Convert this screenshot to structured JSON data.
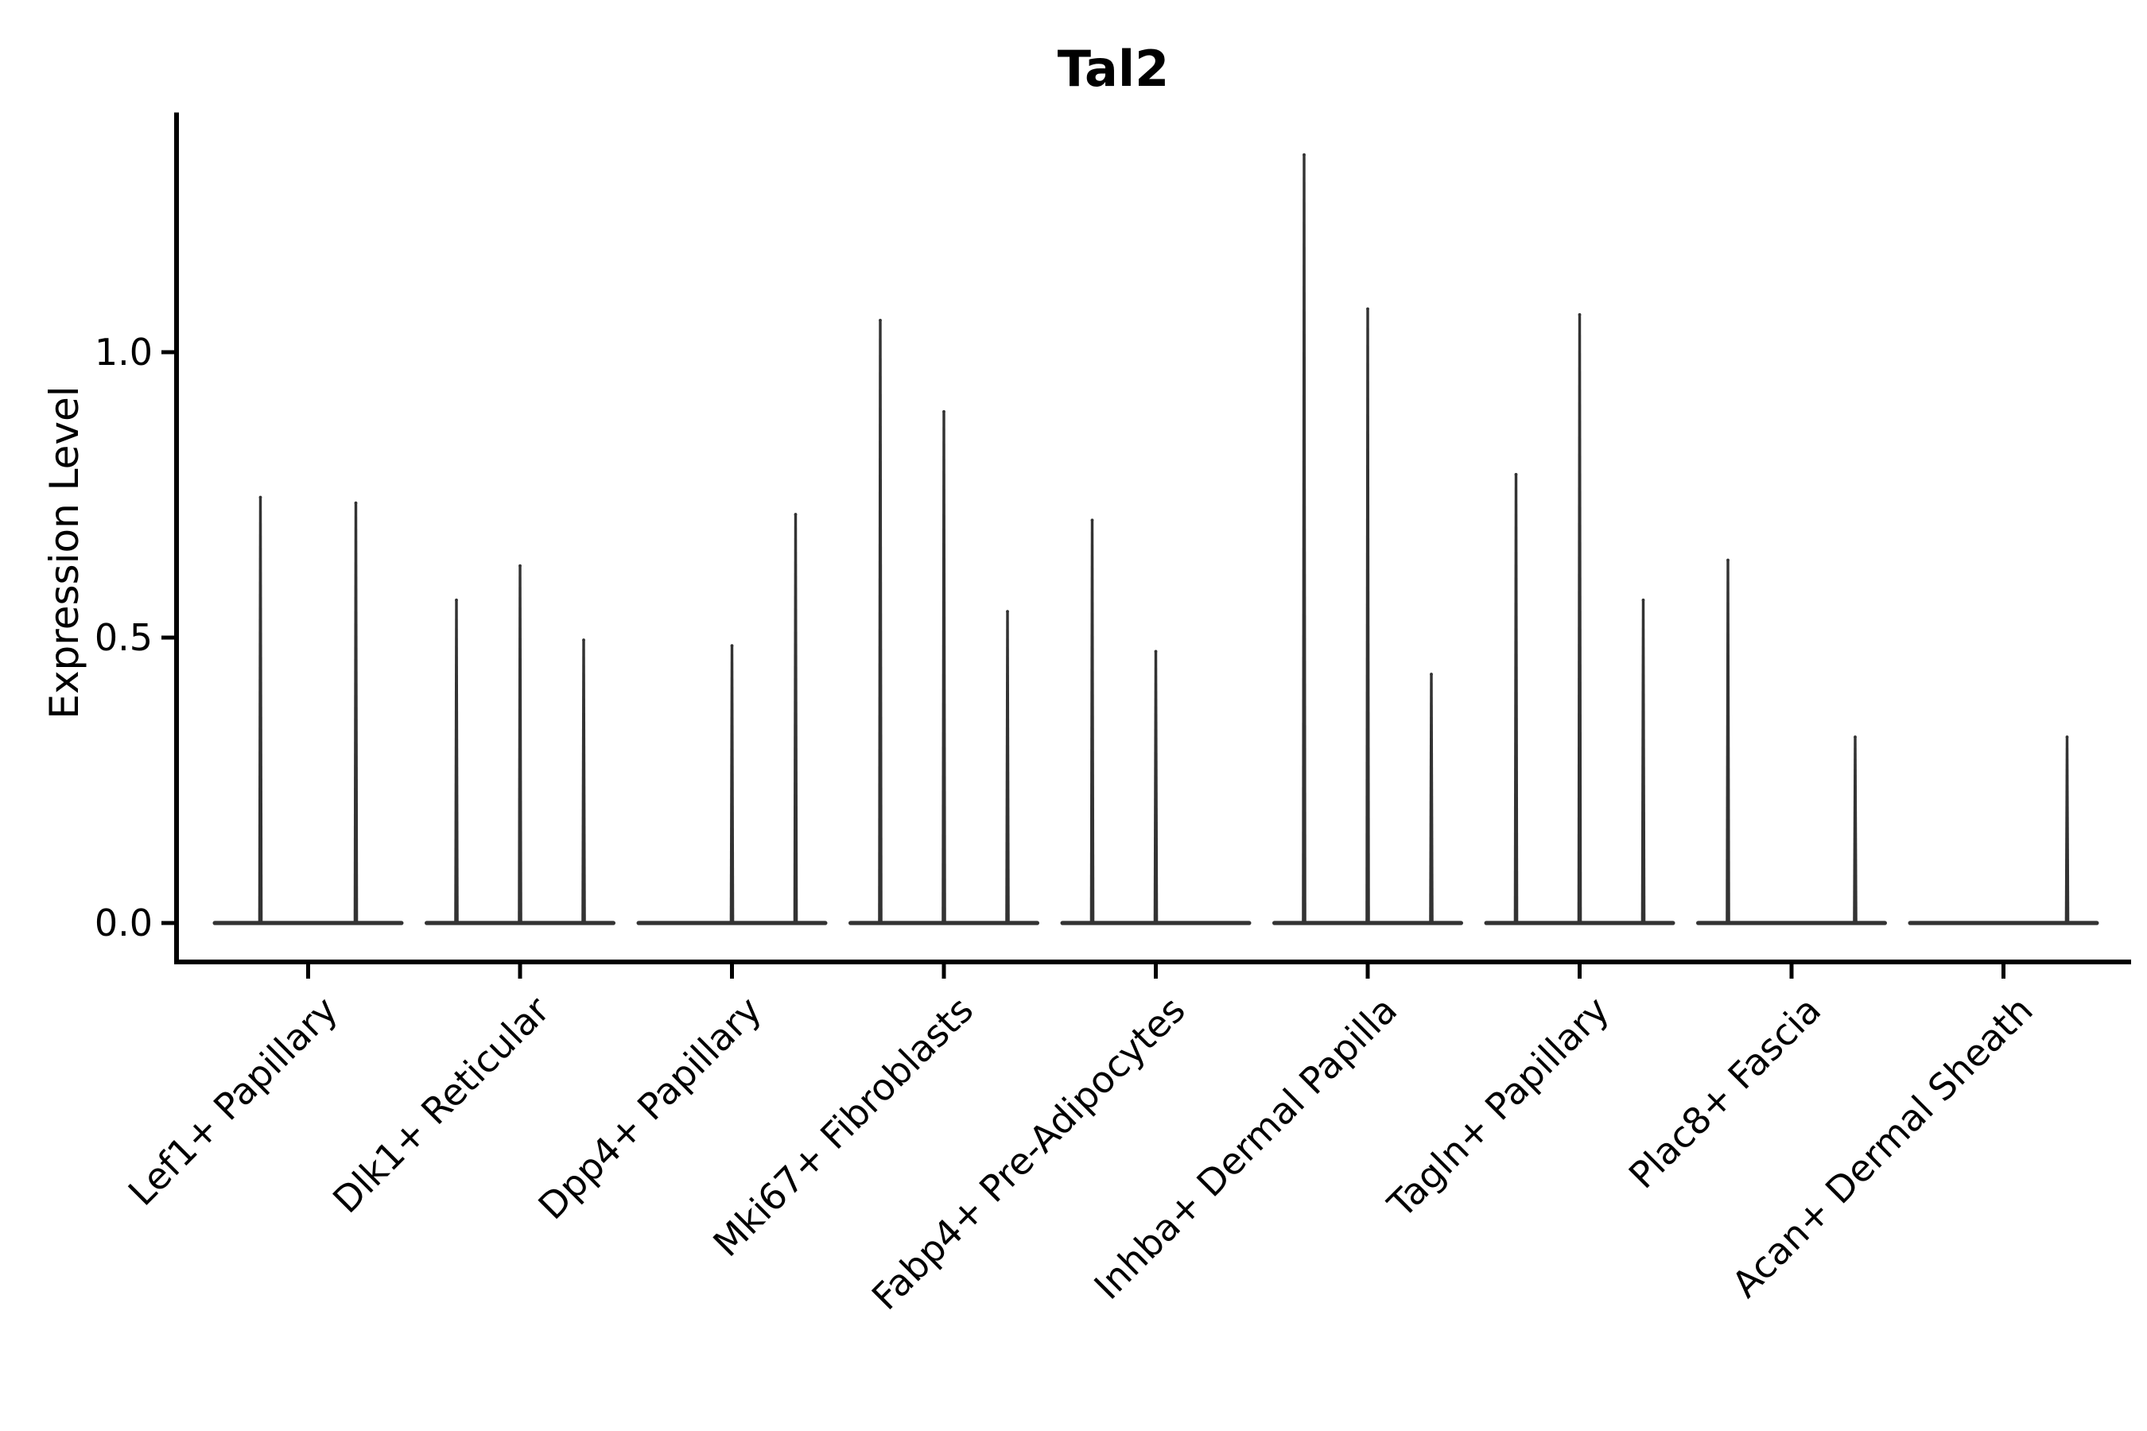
{
  "figure": {
    "title": "Tal2"
  },
  "chart_data": {
    "type": "violin",
    "title": "Tal2",
    "ylabel": "Expression Level",
    "xlabel": "",
    "ytick_labels": [
      "0.0",
      "0.5",
      "1.0"
    ],
    "ytick_values": [
      0.0,
      0.5,
      1.0
    ],
    "ylim": [
      -0.07,
      1.42
    ],
    "grid": false,
    "legend_position": "none",
    "x_tick_label_rotation_deg": 45,
    "violin_color": "#333333",
    "axis_color": "#000000",
    "violin_style": "thin-spike with flat base at zero; 2-3 sub-violins per category",
    "categories": [
      "Lef1+ Papillary",
      "Dlk1+ Reticular",
      "Dpp4+ Papillary",
      "Mki67+ Fibroblasts",
      "Fabp4+ Pre-Adipocytes",
      "Inhba+ Dermal Papilla",
      "Tagln+ Papillary",
      "Plac8+ Fascia",
      "Acan+ Dermal Sheath"
    ],
    "series": [
      {
        "category": "Lef1+ Papillary",
        "violin_maxima": [
          0.75,
          0.74
        ]
      },
      {
        "category": "Dlk1+ Reticular",
        "violin_maxima": [
          0.57,
          0.63,
          0.5
        ]
      },
      {
        "category": "Dpp4+ Papillary",
        "violin_maxima": [
          0,
          0.49,
          0.72
        ]
      },
      {
        "category": "Mki67+ Fibroblasts",
        "violin_maxima": [
          1.06,
          0.9,
          0.55
        ]
      },
      {
        "category": "Fabp4+ Pre-Adipocytes",
        "violin_maxima": [
          0.71,
          0.48,
          0
        ]
      },
      {
        "category": "Inhba+ Dermal Papilla",
        "violin_maxima": [
          1.35,
          1.08,
          0.44
        ]
      },
      {
        "category": "Tagln+ Papillary",
        "violin_maxima": [
          0.79,
          1.07,
          0.57
        ]
      },
      {
        "category": "Plac8+ Fascia",
        "violin_maxima": [
          0.64,
          0,
          0.33
        ]
      },
      {
        "category": "Acan+ Dermal Sheath",
        "violin_maxima": [
          0,
          0,
          0.33
        ]
      }
    ]
  }
}
